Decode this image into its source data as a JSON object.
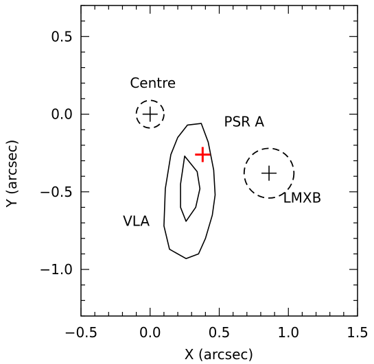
{
  "chart_data": {
    "type": "scatter",
    "xlabel": "X (arcsec)",
    "ylabel": "Y (arcsec)",
    "xlim": [
      -0.5,
      1.5
    ],
    "ylim": [
      -1.3,
      0.7
    ],
    "x_ticks": [
      -0.5,
      0.0,
      0.5,
      1.0,
      1.5
    ],
    "x_tick_labels": [
      "−0.5",
      "0.0",
      "0.5",
      "1.0",
      "1.5"
    ],
    "y_ticks": [
      0.5,
      0.0,
      -0.5,
      -1.0
    ],
    "y_tick_labels": [
      "0.5",
      "0.0",
      "−0.5",
      "−1.0"
    ],
    "x_minor_step": 0.1,
    "y_minor_step": 0.1,
    "markers": [
      {
        "label": "Centre",
        "x": 0.0,
        "y": 0.0,
        "circle_radius": 0.1,
        "color": "#000000"
      },
      {
        "label": "PSR A",
        "x": 0.38,
        "y": -0.26,
        "color": "#ff0000"
      },
      {
        "label": "LMXB",
        "x": 0.86,
        "y": -0.38,
        "circle_radius": 0.18,
        "color": "#000000"
      }
    ],
    "contours": [
      {
        "label": "VLA",
        "points": [
          [
            0.27,
            -0.07
          ],
          [
            0.37,
            -0.06
          ],
          [
            0.42,
            -0.18
          ],
          [
            0.46,
            -0.36
          ],
          [
            0.47,
            -0.52
          ],
          [
            0.45,
            -0.65
          ],
          [
            0.4,
            -0.8
          ],
          [
            0.35,
            -0.9
          ],
          [
            0.26,
            -0.93
          ],
          [
            0.14,
            -0.87
          ],
          [
            0.1,
            -0.72
          ],
          [
            0.11,
            -0.48
          ],
          [
            0.15,
            -0.26
          ],
          [
            0.2,
            -0.15
          ]
        ]
      },
      {
        "label": "",
        "points": [
          [
            0.25,
            -0.27
          ],
          [
            0.34,
            -0.37
          ],
          [
            0.36,
            -0.48
          ],
          [
            0.33,
            -0.6
          ],
          [
            0.26,
            -0.69
          ],
          [
            0.22,
            -0.6
          ],
          [
            0.22,
            -0.45
          ]
        ]
      }
    ],
    "annotations": [
      {
        "text": "Centre",
        "x": 0.02,
        "y": 0.17
      },
      {
        "text": "PSR A",
        "x": 0.68,
        "y": -0.08
      },
      {
        "text": "VLA",
        "x": -0.1,
        "y": -0.72
      },
      {
        "text": "LMXB",
        "x": 1.1,
        "y": -0.57
      }
    ]
  }
}
